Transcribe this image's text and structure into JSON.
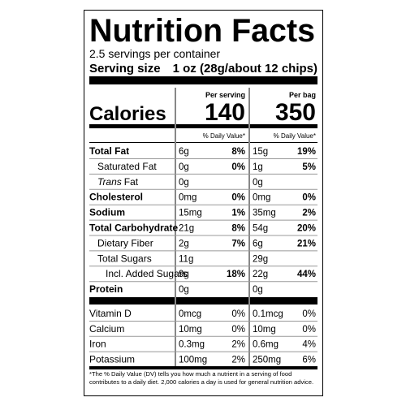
{
  "title": "Nutrition Facts",
  "servings": "2.5 servings per container",
  "serving_size": {
    "label": "Serving size",
    "value": "1 oz (28g/about 12 chips)"
  },
  "columns": [
    "Per serving",
    "Per bag"
  ],
  "calories": {
    "label": "Calories",
    "per_serving": "140",
    "per_bag": "350"
  },
  "dv_header": [
    "% Daily Value*",
    "% Daily Value*"
  ],
  "nutrients": [
    {
      "name": "Total Fat",
      "level": 0,
      "per_serving": {
        "amount": "6g",
        "dv": "8%"
      },
      "per_bag": {
        "amount": "15g",
        "dv": "19%"
      }
    },
    {
      "name": "Saturated Fat",
      "level": 1,
      "per_serving": {
        "amount": "0g",
        "dv": "0%"
      },
      "per_bag": {
        "amount": "1g",
        "dv": "5%"
      }
    },
    {
      "name_italic": "Trans",
      "name": "Fat",
      "level": 1,
      "per_serving": {
        "amount": "0g"
      },
      "per_bag": {
        "amount": "0g"
      }
    },
    {
      "name": "Cholesterol",
      "level": 0,
      "per_serving": {
        "amount": "0mg",
        "dv": "0%"
      },
      "per_bag": {
        "amount": "0mg",
        "dv": "0%"
      }
    },
    {
      "name": "Sodium",
      "level": 0,
      "per_serving": {
        "amount": "15mg",
        "dv": "1%"
      },
      "per_bag": {
        "amount": "35mg",
        "dv": "2%"
      }
    },
    {
      "name": "Total Carbohydrate",
      "level": 0,
      "per_serving": {
        "amount": "21g",
        "dv": "8%"
      },
      "per_bag": {
        "amount": "54g",
        "dv": "20%"
      }
    },
    {
      "name": "Dietary Fiber",
      "level": 1,
      "per_serving": {
        "amount": "2g",
        "dv": "7%"
      },
      "per_bag": {
        "amount": "6g",
        "dv": "21%"
      }
    },
    {
      "name": "Total Sugars",
      "level": 1,
      "per_serving": {
        "amount": "11g"
      },
      "per_bag": {
        "amount": "29g"
      }
    },
    {
      "name": "Incl. Added Sugars",
      "level": 2,
      "per_serving": {
        "amount": "9g",
        "dv": "18%"
      },
      "per_bag": {
        "amount": "22g",
        "dv": "44%"
      }
    },
    {
      "name": "Protein",
      "level": 0,
      "per_serving": {
        "amount": "0g"
      },
      "per_bag": {
        "amount": "0g"
      }
    }
  ],
  "vitamins": [
    {
      "name": "Vitamin D",
      "per_serving": {
        "amount": "0mcg",
        "dv": "0%"
      },
      "per_bag": {
        "amount": "0.1mcg",
        "dv": "0%"
      }
    },
    {
      "name": "Calcium",
      "per_serving": {
        "amount": "10mg",
        "dv": "0%"
      },
      "per_bag": {
        "amount": "10mg",
        "dv": "0%"
      }
    },
    {
      "name": "Iron",
      "per_serving": {
        "amount": "0.3mg",
        "dv": "2%"
      },
      "per_bag": {
        "amount": "0.6mg",
        "dv": "4%"
      }
    },
    {
      "name": "Potassium",
      "per_serving": {
        "amount": "100mg",
        "dv": "2%"
      },
      "per_bag": {
        "amount": "250mg",
        "dv": "6%"
      }
    }
  ],
  "footnote": "*The % Daily Value (DV) tells you how much a nutrient in a serving of food contributes to a daily diet. 2,000 calories a day is used for general nutrition advice."
}
